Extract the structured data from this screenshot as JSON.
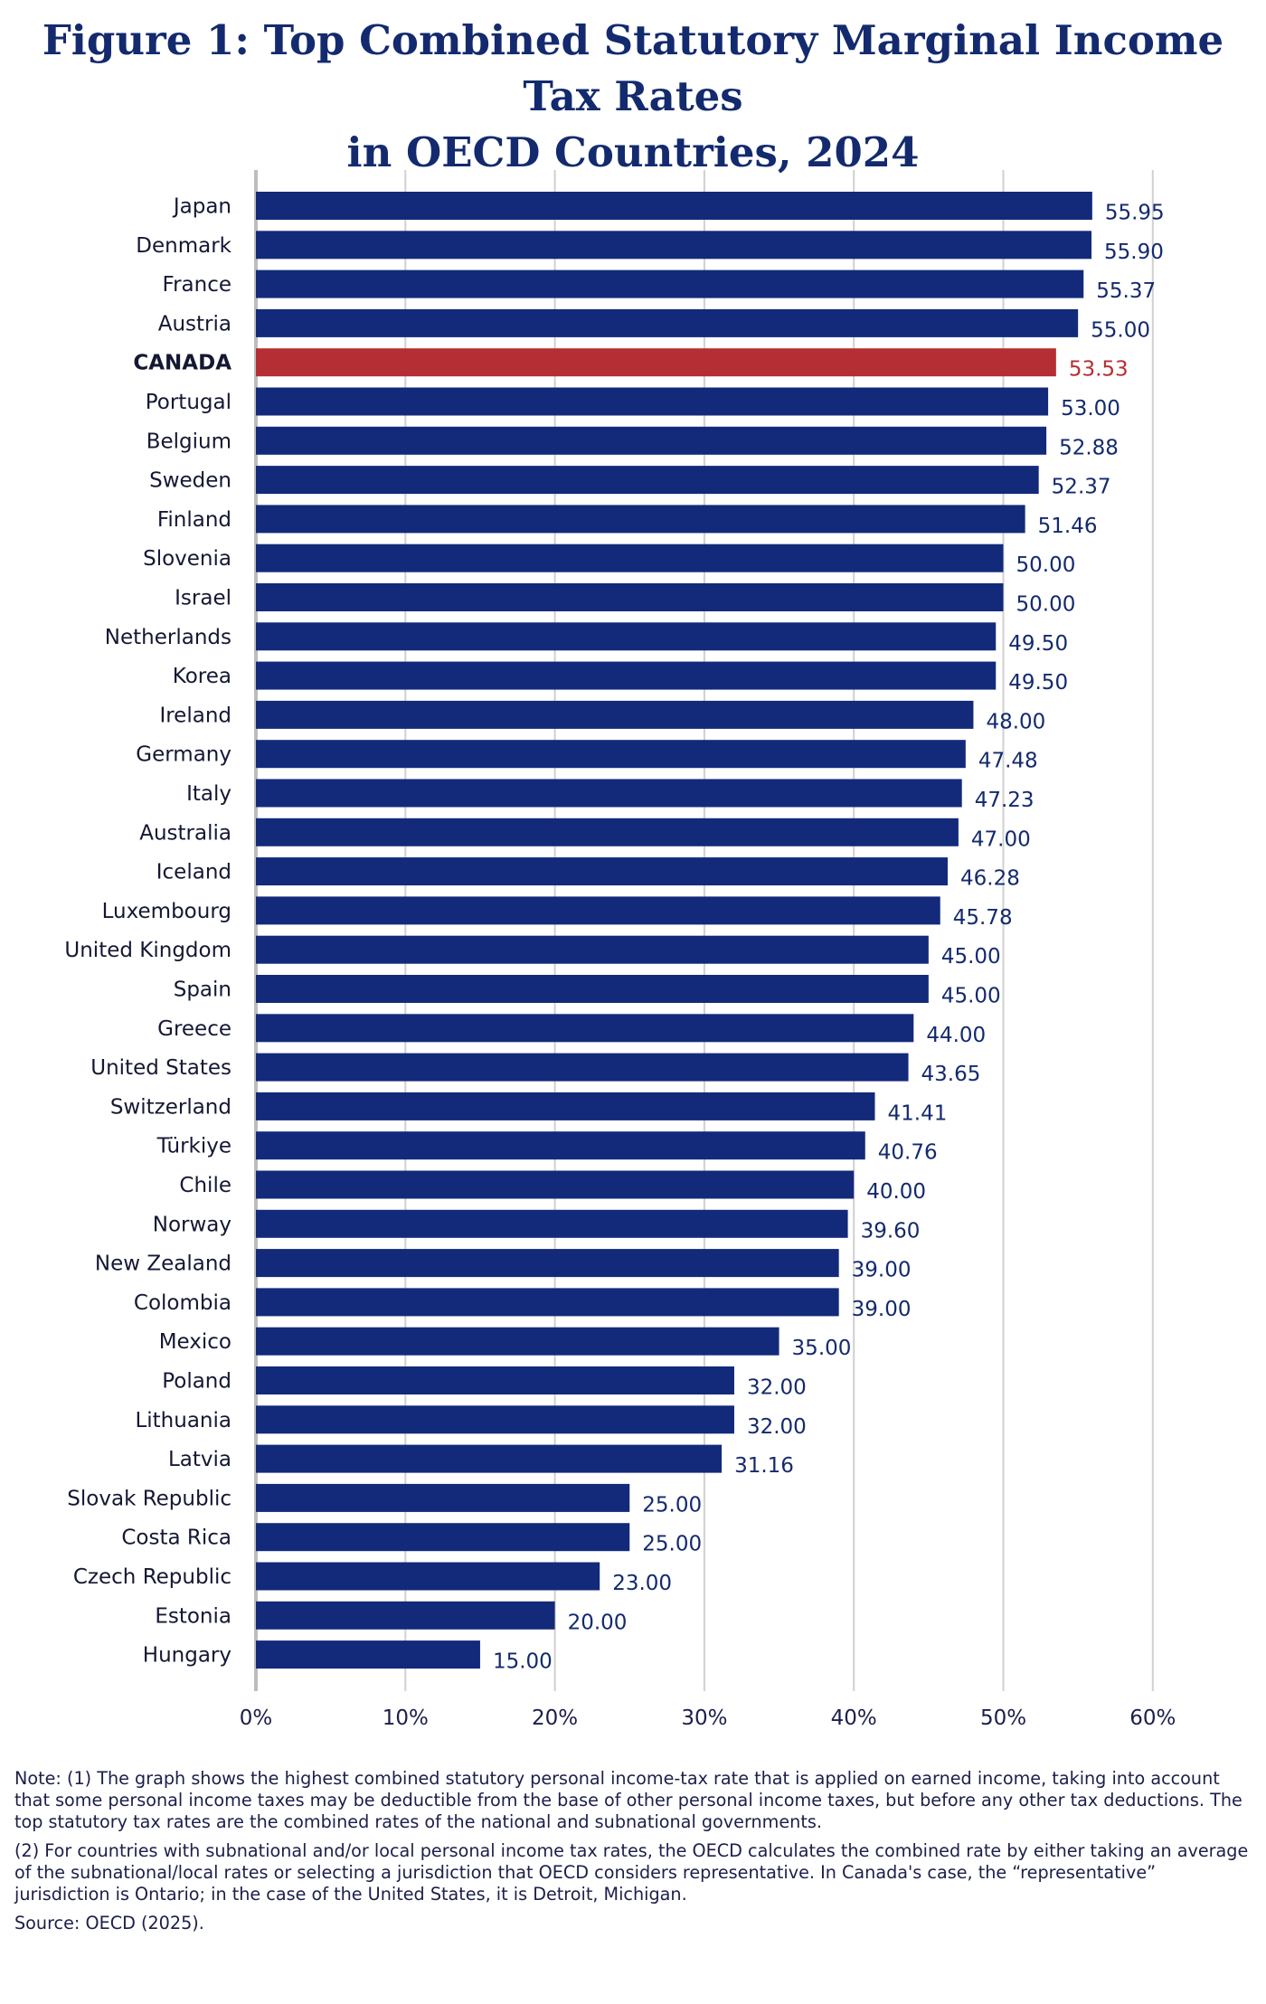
{
  "title_line1": "Figure 1: Top Combined Statutory Marginal Income Tax Rates",
  "title_line2": "in OECD Countries, 2024",
  "colors": {
    "bar": "#132a7a",
    "highlight": "#b52e33",
    "label": "#132a6e",
    "grid": "#d0d0d0"
  },
  "chart_data": {
    "type": "bar",
    "orientation": "horizontal",
    "categories": [
      "Japan",
      "Denmark",
      "France",
      "Austria",
      "CANADA",
      "Portugal",
      "Belgium",
      "Sweden",
      "Finland",
      "Slovenia",
      "Israel",
      "Netherlands",
      "Korea",
      "Ireland",
      "Germany",
      "Italy",
      "Australia",
      "Iceland",
      "Luxembourg",
      "United Kingdom",
      "Spain",
      "Greece",
      "United States",
      "Switzerland",
      "Türkiye",
      "Chile",
      "Norway",
      "New Zealand",
      "Colombia",
      "Mexico",
      "Poland",
      "Lithuania",
      "Latvia",
      "Slovak Republic",
      "Costa Rica",
      "Czech Republic",
      "Estonia",
      "Hungary"
    ],
    "values": [
      55.95,
      55.9,
      55.37,
      55.0,
      53.53,
      53.0,
      52.88,
      52.37,
      51.46,
      50.0,
      50.0,
      49.5,
      49.5,
      48.0,
      47.48,
      47.23,
      47.0,
      46.28,
      45.78,
      45.0,
      45.0,
      44.0,
      43.65,
      41.41,
      40.76,
      40.0,
      39.6,
      39.0,
      39.0,
      35.0,
      32.0,
      32.0,
      31.16,
      25.0,
      25.0,
      23.0,
      20.0,
      15.0
    ],
    "value_labels": [
      "55.95",
      "55.90",
      "55.37",
      "55.00",
      "53.53",
      "53.00",
      "52.88",
      "52.37",
      "51.46",
      "50.00",
      "50.00",
      "49.50",
      "49.50",
      "48.00",
      "47.48",
      "47.23",
      "47.00",
      "46.28",
      "45.78",
      "45.00",
      "45.00",
      "44.00",
      "43.65",
      "41.41",
      "40.76",
      "40.00",
      "39.60",
      "39.00",
      "39.00",
      "35.00",
      "32.00",
      "32.00",
      "31.16",
      "25.00",
      "25.00",
      "23.00",
      "20.00",
      "15.00"
    ],
    "highlight": "CANADA",
    "xlim": [
      0,
      60
    ],
    "xticks": [
      "0%",
      "10%",
      "20%",
      "30%",
      "40%",
      "50%",
      "60%"
    ],
    "grid": true
  },
  "notes": {
    "note1": "Note: (1) The graph shows the highest combined statutory personal income-tax rate that is applied on earned income, taking into account that some personal income taxes may be deductible from the base of other personal income taxes, but before any other tax deductions. The top statutory tax rates are the combined rates of the national and subnational governments.",
    "note2": "(2) For countries with subnational and/or local personal income tax rates, the OECD calculates the combined rate by either taking an average of the subnational/local rates or selecting a jurisdiction that OECD considers representative. In Canada's case, the “representative” jurisdiction is Ontario; in the case of the United States, it is Detroit, Michigan.",
    "source": "Source: OECD (2025)."
  }
}
